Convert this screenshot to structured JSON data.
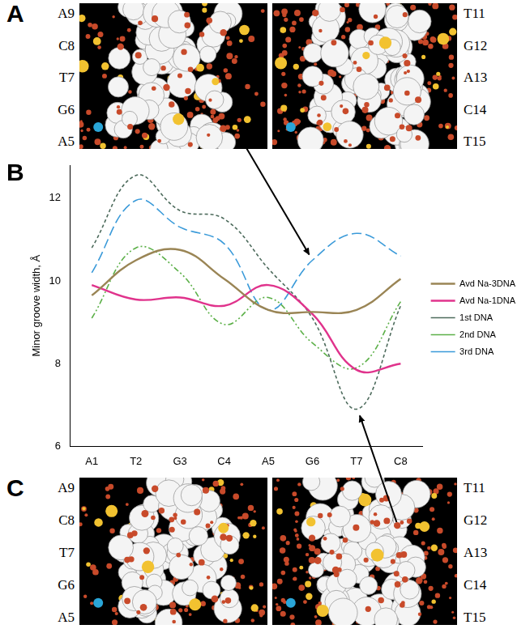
{
  "chart_data": {
    "type": "line",
    "letter": "B",
    "y_label": "Minor groove width, Å",
    "categories": [
      "A1",
      "T2",
      "G3",
      "C4",
      "A5",
      "G6",
      "T7",
      "C8"
    ],
    "series": [
      {
        "name": "Avd Na-3DNA",
        "color": "#9a8555",
        "line_style": "solid",
        "values": [
          9.65,
          10.5,
          10.75,
          10.05,
          9.3,
          9.25,
          9.3,
          10.05
        ]
      },
      {
        "name": "Avd Na-1DNA",
        "color": "#e0338c",
        "line_style": "solid",
        "values": [
          9.9,
          9.55,
          9.6,
          9.4,
          9.9,
          9.2,
          7.85,
          8.0
        ]
      },
      {
        "name": "1st DNA",
        "color": "#4d6b5c",
        "line_style": "dashed",
        "values": [
          10.8,
          12.55,
          11.7,
          11.5,
          10.3,
          9.1,
          6.9,
          9.4
        ]
      },
      {
        "name": "2nd DNA",
        "color": "#5cb048",
        "line_style": "dashdotdot",
        "values": [
          9.1,
          10.8,
          10.2,
          8.95,
          9.6,
          8.5,
          7.9,
          9.5
        ]
      },
      {
        "name": "3rd DNA",
        "color": "#3a9ad9",
        "line_style": "longdash",
        "values": [
          10.2,
          11.95,
          11.3,
          10.9,
          9.3,
          10.5,
          11.15,
          10.6
        ]
      }
    ],
    "ylim": [
      6,
      12.8
    ],
    "yticks": [
      6,
      8,
      10,
      12
    ],
    "grid": false,
    "legend": "right"
  },
  "panels": [
    {
      "letter": "A",
      "left_labels": [
        "A9",
        "C8",
        "T7",
        "G6",
        "A5"
      ],
      "right_labels": [
        "T11",
        "G12",
        "A13",
        "C14",
        "T15"
      ]
    },
    {
      "letter": "C",
      "left_labels": [
        "A9",
        "C8",
        "T7",
        "G6",
        "A5"
      ],
      "right_labels": [
        "T11",
        "G12",
        "A13",
        "C14",
        "T15"
      ]
    }
  ]
}
